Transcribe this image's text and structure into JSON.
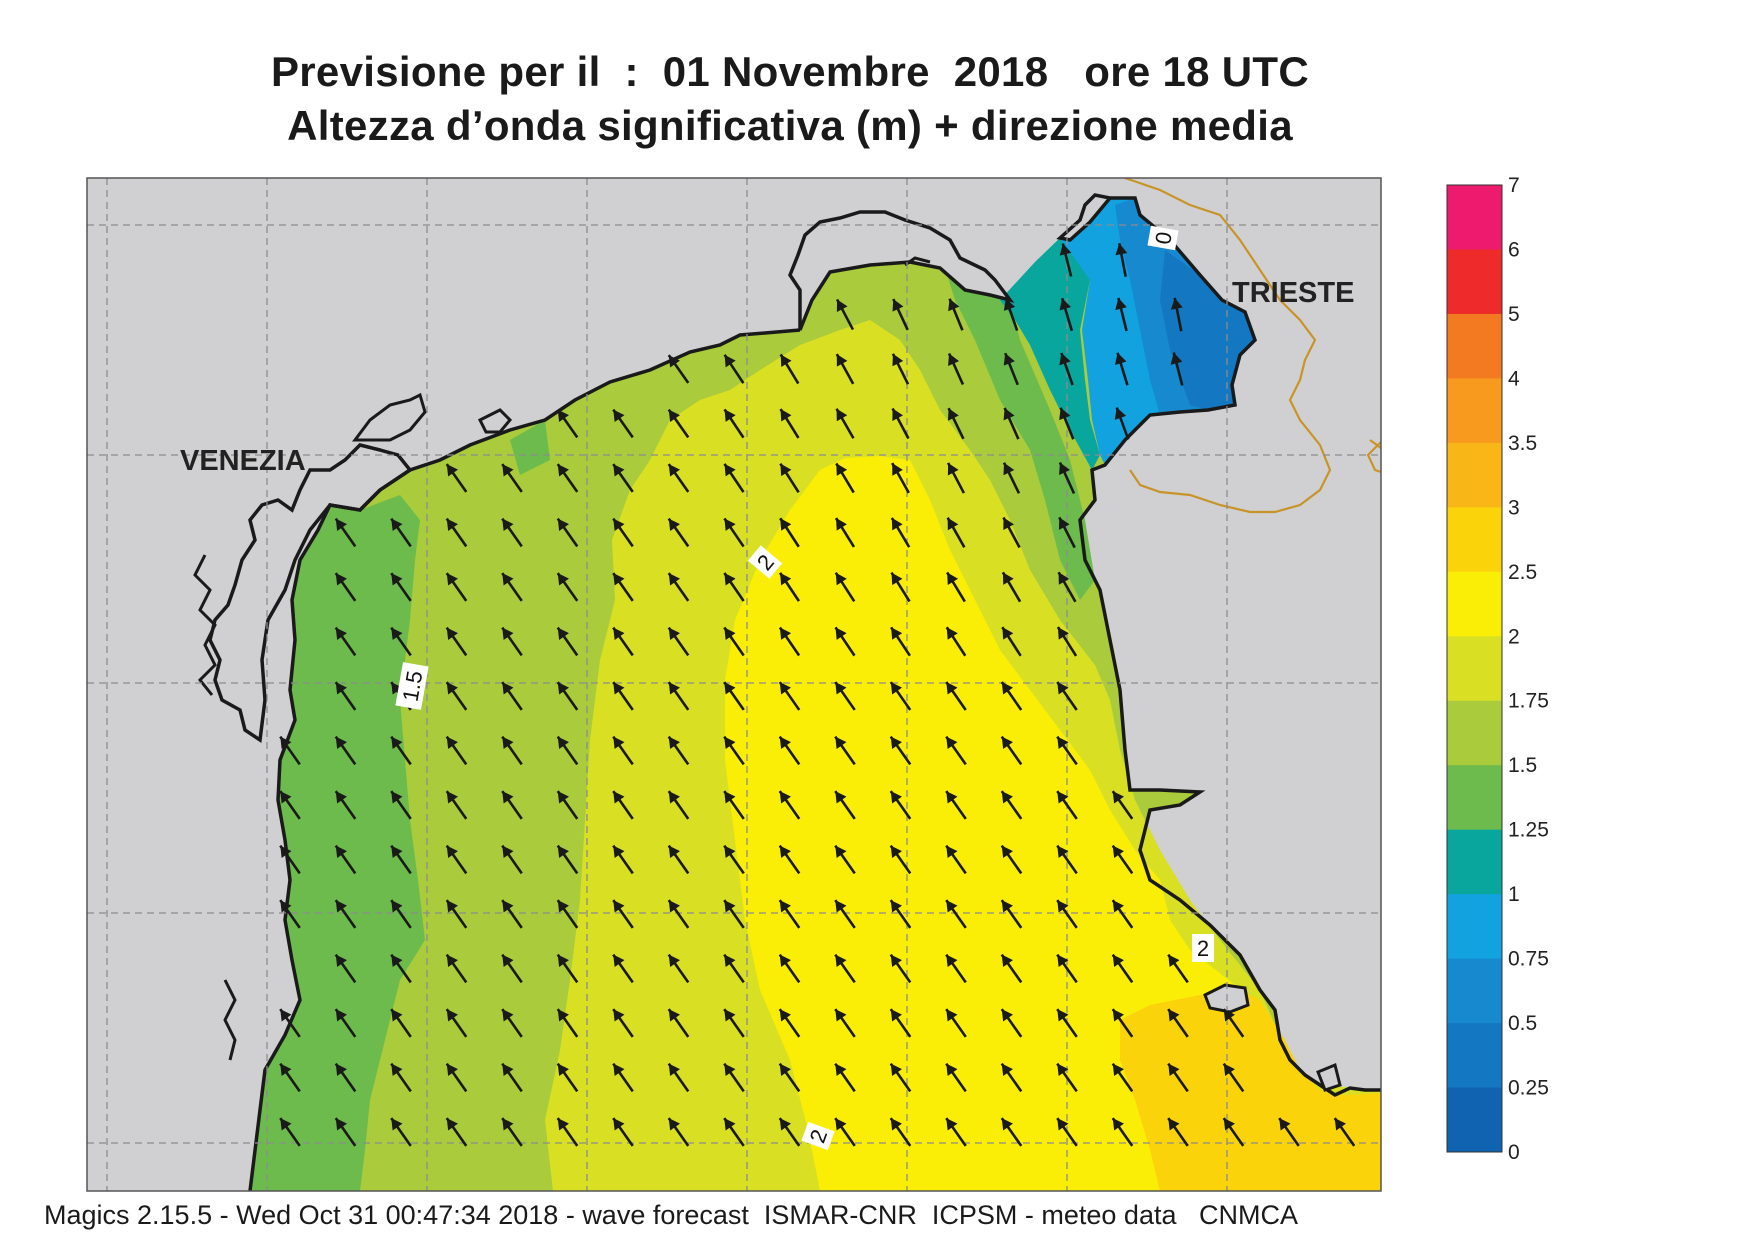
{
  "title": {
    "line1": "Previsione per il  :  01 Novembre  2018   ore 18 UTC",
    "line2": "Altezza d’onda significativa (m) + direzione media"
  },
  "places": {
    "venezia": "VENEZIA",
    "trieste": "TRIESTE"
  },
  "contour_labels": [
    "2",
    "1.5",
    "2",
    "2",
    "0"
  ],
  "legend": {
    "ticks": [
      "7",
      "6",
      "5",
      "4",
      "3.5",
      "3",
      "2.5",
      "2",
      "1.75",
      "1.5",
      "1.25",
      "1",
      "0.75",
      "0.5",
      "0.25",
      "0"
    ],
    "colors": [
      "#ee1a6e",
      "#ee2a2a",
      "#f47a22",
      "#f79a1e",
      "#f9b617",
      "#fad30a",
      "#fbee06",
      "#d9df23",
      "#a9cb3c",
      "#6dbb4c",
      "#09a69d",
      "#12a2e0",
      "#1689cf",
      "#1477c2",
      "#0f63b0"
    ]
  },
  "colors": {
    "land": "#d0d0d2",
    "coast": "#1a1a1a",
    "border": "#c8942a",
    "grid": "#8c8c8c"
  },
  "footer": "Magics 2.15.5 - Wed Oct 31 00:47:34 2018 - wave forecast  ISMAR-CNR  ICPSM - meteo data   CNMCA"
}
